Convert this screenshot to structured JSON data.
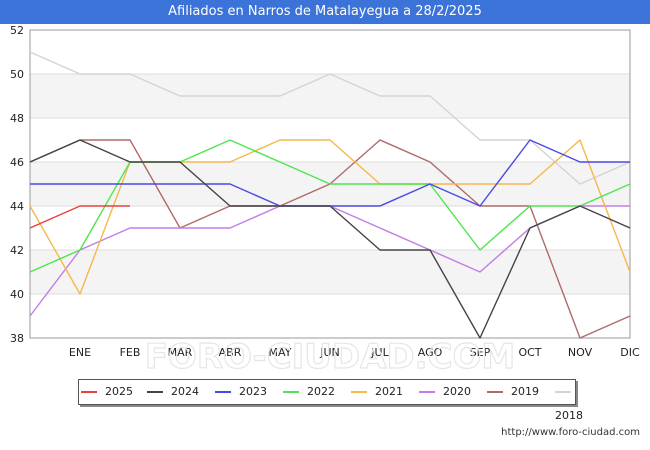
{
  "title": "Afiliados en Narros de Matalayegua a 28/2/2025",
  "source": "http://www.foro-ciudad.com",
  "watermark": "FORO-CIUDAD.COM",
  "chart_data": {
    "type": "line",
    "categories": [
      "",
      "ENE",
      "FEB",
      "MAR",
      "ABR",
      "MAY",
      "JUN",
      "JUL",
      "AGO",
      "SEP",
      "OCT",
      "NOV",
      "DIC"
    ],
    "ylim": [
      38,
      52
    ],
    "yticks": [
      38,
      40,
      42,
      44,
      46,
      48,
      50,
      52
    ],
    "grid": "horizontal",
    "legend_position": "bottom",
    "series": [
      {
        "name": "2025",
        "color": "#e8413c",
        "values": [
          43,
          44,
          44,
          null,
          null,
          null,
          null,
          null,
          null,
          null,
          null,
          null,
          null
        ]
      },
      {
        "name": "2024",
        "color": "#444444",
        "values": [
          46,
          47,
          46,
          46,
          44,
          44,
          44,
          42,
          42,
          38,
          43,
          44,
          43
        ]
      },
      {
        "name": "2023",
        "color": "#4a4ae6",
        "values": [
          45,
          45,
          45,
          45,
          45,
          44,
          44,
          44,
          45,
          44,
          47,
          46,
          46
        ]
      },
      {
        "name": "2022",
        "color": "#4de64d",
        "values": [
          41,
          42,
          46,
          46,
          47,
          46,
          45,
          45,
          45,
          42,
          44,
          44,
          45
        ]
      },
      {
        "name": "2021",
        "color": "#f5b84a",
        "values": [
          44,
          40,
          46,
          46,
          46,
          47,
          47,
          45,
          45,
          45,
          45,
          47,
          41
        ]
      },
      {
        "name": "2020",
        "color": "#c07ee6",
        "values": [
          39,
          42,
          43,
          43,
          43,
          44,
          44,
          43,
          42,
          41,
          43,
          44,
          44
        ]
      },
      {
        "name": "2019",
        "color": "#b06a6a",
        "values": [
          46,
          47,
          47,
          43,
          44,
          44,
          45,
          47,
          46,
          44,
          44,
          38,
          39
        ]
      },
      {
        "name": "2018",
        "color": "#d4d4d4",
        "values": [
          51,
          50,
          50,
          49,
          49,
          49,
          50,
          49,
          49,
          47,
          47,
          45,
          46
        ]
      }
    ]
  }
}
